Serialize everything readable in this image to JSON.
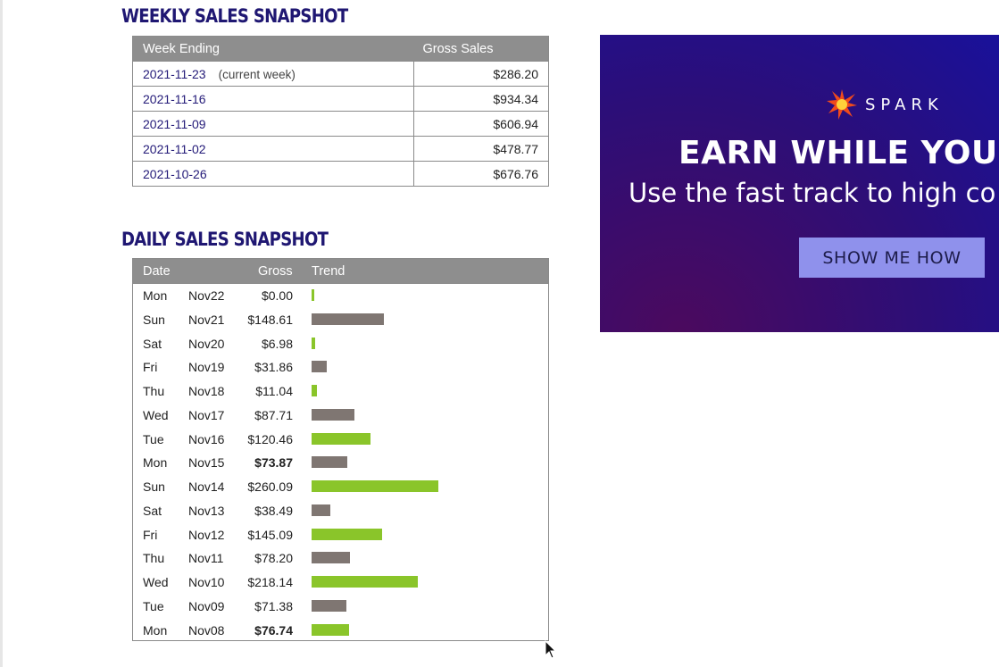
{
  "weekly": {
    "title": "WEEKLY SALES SNAPSHOT",
    "columns": [
      "Week Ending",
      "Gross Sales"
    ],
    "rows": [
      {
        "week": "2021-11-23",
        "note": "(current week)",
        "amount": "$286.20"
      },
      {
        "week": "2021-11-16",
        "note": "",
        "amount": "$934.34"
      },
      {
        "week": "2021-11-09",
        "note": "",
        "amount": "$606.94"
      },
      {
        "week": "2021-11-02",
        "note": "",
        "amount": "$478.77"
      },
      {
        "week": "2021-10-26",
        "note": "",
        "amount": "$676.76"
      }
    ]
  },
  "daily": {
    "title": "DAILY SALES SNAPSHOT",
    "columns": [
      "Date",
      "Gross",
      "Trend"
    ],
    "colors": {
      "green": "#8ac52a",
      "gray": "#7f7672"
    },
    "rows": [
      {
        "day": "Mon",
        "date": "Nov22",
        "gross": "$0.00",
        "value": 0.0,
        "bold": false,
        "color": "green"
      },
      {
        "day": "Sun",
        "date": "Nov21",
        "gross": "$148.61",
        "value": 148.61,
        "bold": false,
        "color": "gray"
      },
      {
        "day": "Sat",
        "date": "Nov20",
        "gross": "$6.98",
        "value": 6.98,
        "bold": false,
        "color": "green"
      },
      {
        "day": "Fri",
        "date": "Nov19",
        "gross": "$31.86",
        "value": 31.86,
        "bold": false,
        "color": "gray"
      },
      {
        "day": "Thu",
        "date": "Nov18",
        "gross": "$11.04",
        "value": 11.04,
        "bold": false,
        "color": "green"
      },
      {
        "day": "Wed",
        "date": "Nov17",
        "gross": "$87.71",
        "value": 87.71,
        "bold": false,
        "color": "gray"
      },
      {
        "day": "Tue",
        "date": "Nov16",
        "gross": "$120.46",
        "value": 120.46,
        "bold": false,
        "color": "green"
      },
      {
        "day": "Mon",
        "date": "Nov15",
        "gross": "$73.87",
        "value": 73.87,
        "bold": true,
        "color": "gray"
      },
      {
        "day": "Sun",
        "date": "Nov14",
        "gross": "$260.09",
        "value": 260.09,
        "bold": false,
        "color": "green"
      },
      {
        "day": "Sat",
        "date": "Nov13",
        "gross": "$38.49",
        "value": 38.49,
        "bold": false,
        "color": "gray"
      },
      {
        "day": "Fri",
        "date": "Nov12",
        "gross": "$145.09",
        "value": 145.09,
        "bold": false,
        "color": "green"
      },
      {
        "day": "Thu",
        "date": "Nov11",
        "gross": "$78.20",
        "value": 78.2,
        "bold": false,
        "color": "gray"
      },
      {
        "day": "Wed",
        "date": "Nov10",
        "gross": "$218.14",
        "value": 218.14,
        "bold": false,
        "color": "green"
      },
      {
        "day": "Tue",
        "date": "Nov09",
        "gross": "$71.38",
        "value": 71.38,
        "bold": false,
        "color": "gray"
      },
      {
        "day": "Mon",
        "date": "Nov08",
        "gross": "$76.74",
        "value": 76.74,
        "bold": true,
        "color": "green"
      }
    ]
  },
  "ad": {
    "brand": "SPARK",
    "headline": "EARN WHILE YOU S",
    "subline": "Use the fast track to high co",
    "button_label": "SHOW ME HOW",
    "icon": "spark-star-icon"
  }
}
